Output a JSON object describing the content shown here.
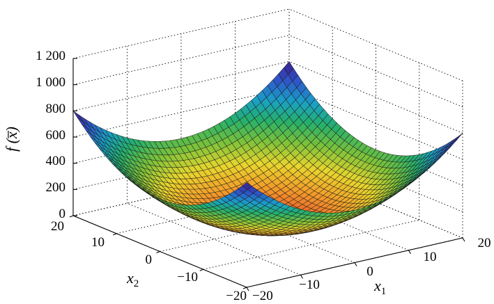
{
  "chart_data": {
    "type": "surface3d",
    "function": "f(x) = x1^2 + x2^2",
    "x1": {
      "label": "x",
      "label_sub": "1",
      "range": [
        -20,
        20
      ],
      "ticks": [
        "−20",
        "−10",
        "0",
        "10",
        "20"
      ]
    },
    "x2": {
      "label": "x",
      "label_sub": "2",
      "range": [
        -20,
        20
      ],
      "ticks": [
        "−20",
        "−10",
        "0",
        "10",
        "20"
      ]
    },
    "z": {
      "label_prefix": "f (",
      "label_var": "x̅",
      "label_suffix": ")",
      "range": [
        0,
        1200
      ],
      "ticks": [
        "0",
        "200",
        "400",
        "600",
        "800",
        "1 000",
        "1 200"
      ]
    },
    "grid_steps": 40,
    "grid": true,
    "colormap": [
      "#3b1a8a",
      "#2f55c8",
      "#1aa0c8",
      "#25b06b",
      "#7cc23a",
      "#e8d62e",
      "#f29a2a",
      "#e8502c"
    ]
  }
}
